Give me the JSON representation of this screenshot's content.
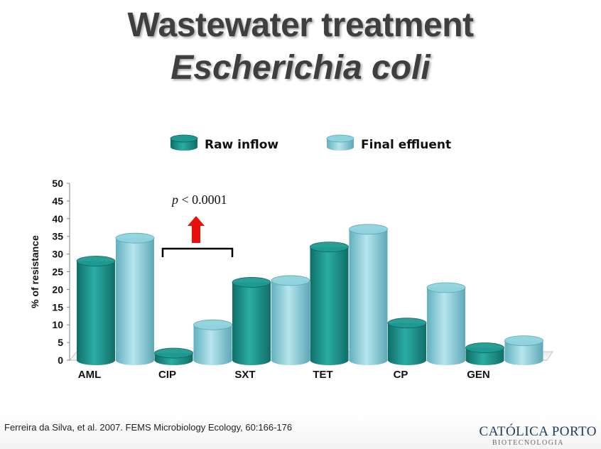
{
  "slide": {
    "title_line1": "Wastewater treatment",
    "title_line2": "Escherichia coli",
    "citation": "Ferreira da Silva, et al. 2007. FEMS Microbiology Ecology, 60:166-176",
    "brand": "CATÓLICA PORTO",
    "brand_sub": "BIOTECNOLOGIA"
  },
  "chart_data": {
    "type": "bar",
    "style": "3d-cylinder",
    "categories": [
      "AML",
      "CIP",
      "SXT",
      "TET",
      "CP",
      "GEN"
    ],
    "series": [
      {
        "name": "Raw inflow",
        "color": "#1e9a92",
        "values": [
          28,
          2,
          22,
          32,
          10.5,
          3.5
        ]
      },
      {
        "name": "Final effluent",
        "color": "#8fd3df",
        "values": [
          34.5,
          10,
          22.5,
          37,
          20.5,
          5.5
        ]
      }
    ],
    "ylabel": "% of resistance",
    "ylim": [
      0,
      50
    ],
    "yticks": [
      0,
      5,
      10,
      15,
      20,
      25,
      30,
      35,
      40,
      45,
      50
    ],
    "legend_position": "top",
    "grid": false,
    "annotation": {
      "italic": "p",
      "text": "< 0.0001",
      "arrow_color": "#e8100c"
    }
  }
}
